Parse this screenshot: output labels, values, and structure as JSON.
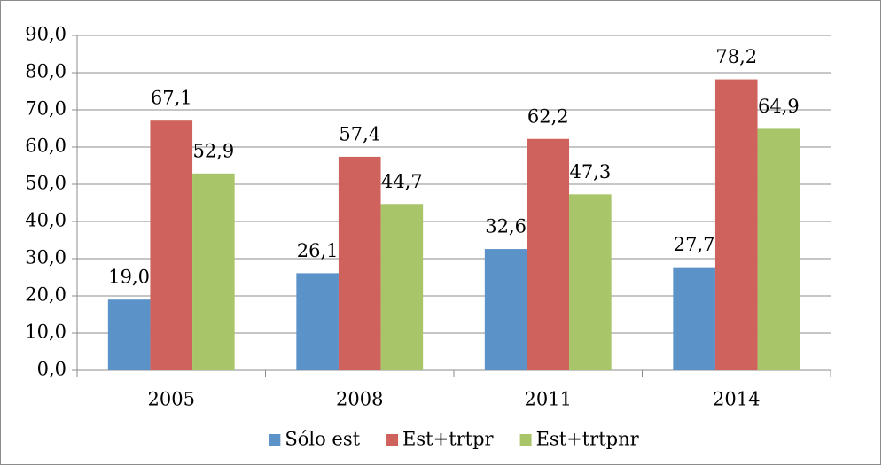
{
  "chart_data": {
    "type": "bar",
    "categories": [
      "2005",
      "2008",
      "2011",
      "2014"
    ],
    "series": [
      {
        "name": "Sólo est",
        "color": "#5b93c8",
        "values": [
          19.0,
          26.1,
          32.6,
          27.7
        ],
        "value_labels": [
          "19,0",
          "26,1",
          "32,6",
          "27,7"
        ]
      },
      {
        "name": "Est+trtpr",
        "color": "#cf625c",
        "values": [
          67.1,
          57.4,
          62.2,
          78.2
        ],
        "value_labels": [
          "67,1",
          "57,4",
          "62,2",
          "78,2"
        ]
      },
      {
        "name": "Est+trtpnr",
        "color": "#a8c56a",
        "values": [
          52.9,
          44.7,
          47.3,
          64.9
        ],
        "value_labels": [
          "52,9",
          "44,7",
          "47,3",
          "64,9"
        ]
      }
    ],
    "ylim": [
      0,
      90
    ],
    "yticks": [
      {
        "value": 0,
        "label": "0,0"
      },
      {
        "value": 10,
        "label": "10,0"
      },
      {
        "value": 20,
        "label": "20,0"
      },
      {
        "value": 30,
        "label": "30,0"
      },
      {
        "value": 40,
        "label": "40,0"
      },
      {
        "value": 50,
        "label": "50,0"
      },
      {
        "value": 60,
        "label": "60,0"
      },
      {
        "value": 70,
        "label": "70,0"
      },
      {
        "value": 80,
        "label": "80,0"
      },
      {
        "value": 90,
        "label": "90,0"
      }
    ],
    "grid": true,
    "legend": "bottom"
  }
}
